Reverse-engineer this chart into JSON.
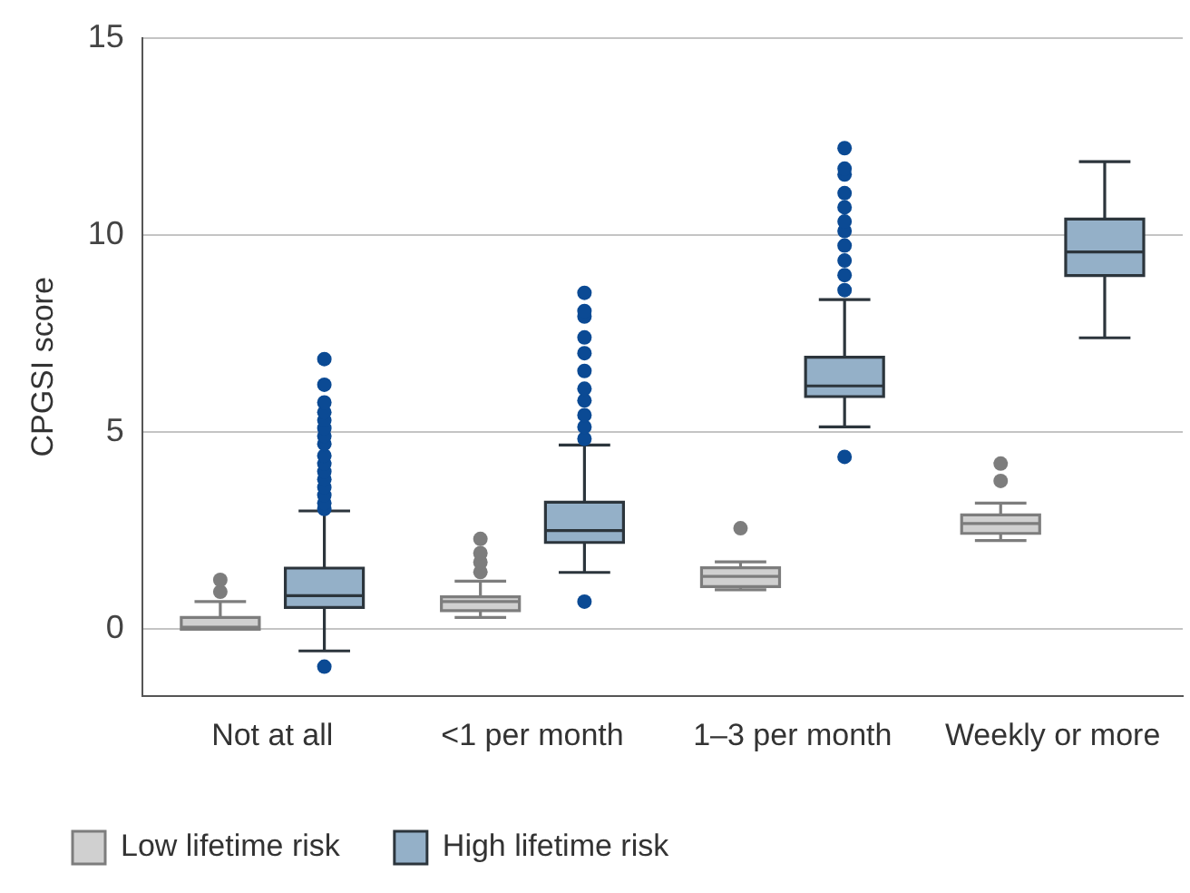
{
  "chart_data": {
    "type": "box",
    "ylabel": "CPGSI score",
    "categories": [
      "Not at all",
      "<1 per month",
      "1–3 per month",
      "Weekly or more"
    ],
    "ylim": [
      -1.7,
      15
    ],
    "yticks": [
      0,
      5,
      10,
      15
    ],
    "grid": "y",
    "legend": "bottom",
    "series": [
      {
        "name": "Low lifetime risk",
        "color": "#d0d0d0",
        "boxes": [
          {
            "low": 0,
            "q1": 0,
            "median": 0.05,
            "q3": 0.3,
            "high": 0.7,
            "outliers": [
              0.95,
              1.25
            ]
          },
          {
            "low": 0.3,
            "q1": 0.47,
            "median": 0.7,
            "q3": 0.82,
            "high": 1.22,
            "outliers": [
              1.45,
              1.7,
              1.93,
              2.29
            ]
          },
          {
            "low": 1.0,
            "q1": 1.08,
            "median": 1.34,
            "q3": 1.56,
            "high": 1.71,
            "outliers": [
              2.56
            ]
          },
          {
            "low": 2.25,
            "q1": 2.43,
            "median": 2.68,
            "q3": 2.9,
            "high": 3.2,
            "outliers": [
              3.76,
              4.2
            ]
          }
        ]
      },
      {
        "name": "High lifetime risk",
        "color": "#94b0c8",
        "boxes": [
          {
            "low": -0.55,
            "q1": 0.55,
            "median": 0.85,
            "q3": 1.55,
            "high": 3.0,
            "outliers": [
              -0.95,
              3.05,
              3.2,
              3.4,
              3.6,
              3.8,
              4.0,
              4.2,
              4.4,
              4.7,
              4.9,
              5.1,
              5.3,
              5.5,
              5.75,
              6.2,
              6.85
            ]
          },
          {
            "low": 1.44,
            "q1": 2.2,
            "median": 2.5,
            "q3": 3.22,
            "high": 4.67,
            "outliers": [
              0.7,
              4.83,
              5.13,
              5.43,
              5.8,
              6.1,
              6.55,
              7.0,
              7.4,
              7.93,
              8.07,
              8.53
            ]
          },
          {
            "low": 5.13,
            "q1": 5.9,
            "median": 6.17,
            "q3": 6.9,
            "high": 8.36,
            "outliers": [
              4.37,
              8.6,
              8.98,
              9.35,
              9.73,
              10.1,
              10.34,
              10.7,
              11.06,
              11.53,
              11.68,
              12.2
            ]
          },
          {
            "low": 7.39,
            "q1": 8.97,
            "median": 9.57,
            "q3": 10.4,
            "high": 11.86
          }
        ]
      }
    ]
  }
}
